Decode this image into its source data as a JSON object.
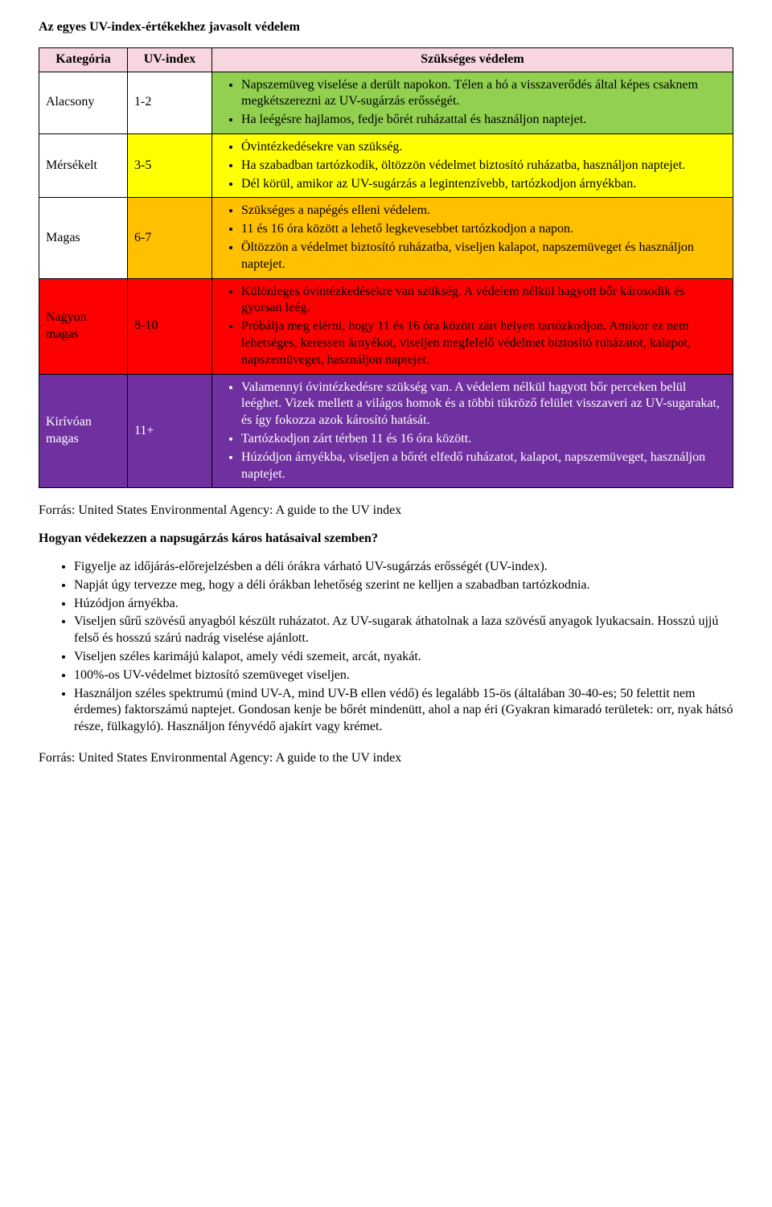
{
  "title": "Az egyes UV-index-értékekhez javasolt védelem",
  "colors": {
    "header_bg": "#f7d6e0",
    "text_white": "#ffffff",
    "text_black": "#000000"
  },
  "headers": {
    "category": "Kategória",
    "uv_index": "UV-index",
    "protection": "Szükséges védelem"
  },
  "rows": [
    {
      "category": "Alacsony",
      "uv_index": "1-2",
      "cat_bg": "#ffffff",
      "idx_bg": "#ffffff",
      "prot_bg": "#92d050",
      "text_color": "#000000",
      "bullets": [
        "Napszemüveg viselése a derült napokon. Télen a hó a visszaverődés által képes csaknem megkétszerezni az UV-sugárzás erősségét.",
        "Ha leégésre hajlamos, fedje bőrét ruházattal és használjon naptejet."
      ]
    },
    {
      "category": "Mérsékelt",
      "uv_index": "3-5",
      "cat_bg": "#ffffff",
      "idx_bg": "#ffff00",
      "prot_bg": "#ffff00",
      "text_color": "#000000",
      "bullets": [
        "Óvintézkedésekre van szükség.",
        "Ha szabadban tartózkodik, öltözzön védelmet biztosító ruházatba, használjon naptejet.",
        "Dél körül, amikor az UV-sugárzás a legintenzívebb, tartózkodjon árnyékban."
      ]
    },
    {
      "category": "Magas",
      "uv_index": "6-7",
      "cat_bg": "#ffffff",
      "idx_bg": "#ffc000",
      "prot_bg": "#ffc000",
      "text_color": "#000000",
      "bullets": [
        "Szükséges a napégés elleni védelem.",
        "11 és 16 óra között a lehető legkevesebbet tartózkodjon a napon.",
        "Öltözzön a védelmet biztosító ruházatba, viseljen kalapot, napszemüveget és használjon naptejet."
      ]
    },
    {
      "category": "Nagyon magas",
      "uv_index": "8-10",
      "cat_bg": "#ff0000",
      "idx_bg": "#ff0000",
      "prot_bg": "#ff0000",
      "text_color": "#000000",
      "bullets": [
        "Különleges óvintézkedésekre van szükség. A védelem nélkül hagyott bőr károsodik és gyorsan leég.",
        "Próbálja meg elérni, hogy 11 és 16 óra között zárt helyen tartózkodjon. Amikor ez nem lehetséges, keressen árnyékot, viseljen megfelelő védelmet biztosító ruházatot, kalapot, napszemüveget, használjon naptejet."
      ]
    },
    {
      "category": "Kirívóan magas",
      "uv_index": "11+",
      "cat_bg": "#7030a0",
      "idx_bg": "#7030a0",
      "prot_bg": "#7030a0",
      "text_color": "#ffffff",
      "bullets": [
        "Valamennyi óvintézkedésre szükség van. A védelem nélkül hagyott bőr perceken belül leéghet. Vizek mellett a világos homok és a többi tükröző felület visszaveri az UV-sugarakat, és így fokozza azok károsító hatását.",
        "Tartózkodjon zárt térben 11 és 16 óra között.",
        "Húzódjon árnyékba, viseljen a bőrét elfedő ruházatot, kalapot, napszemüveget, használjon naptejet."
      ]
    }
  ],
  "source_line_1": "Forrás: United States Environmental Agency: A guide to the UV index",
  "question": "Hogyan védekezzen a napsugárzás káros hatásaival szemben?",
  "advice": [
    "Figyelje az időjárás-előrejelzésben a déli órákra várható UV-sugárzás erősségét (UV-index).",
    "Napját úgy tervezze meg, hogy a déli órákban lehetőség szerint ne kelljen a szabadban tartózkodnia.",
    "Húzódjon árnyékba.",
    "Viseljen sűrű szövésű anyagból készült ruházatot. Az UV-sugarak áthatolnak a laza szövésű anyagok lyukacsain. Hosszú ujjú felső és hosszú szárú nadrág viselése ajánlott.",
    "Viseljen széles karimájú kalapot, amely védi szemeit, arcát, nyakát.",
    "100%-os UV-védelmet biztosító szemüveget viseljen.",
    "Használjon széles spektrumú (mind UV-A, mind UV-B ellen védő) és legalább 15-ös (általában 30-40-es; 50 felettit nem érdemes) faktorszámú naptejet. Gondosan kenje be bőrét mindenütt, ahol a nap éri (Gyakran kimaradó területek: orr, nyak hátsó része, fülkagyló). Használjon fényvédő ajakírt vagy krémet."
  ],
  "source_line_2": "Forrás: United States Environmental Agency: A guide to the UV index"
}
